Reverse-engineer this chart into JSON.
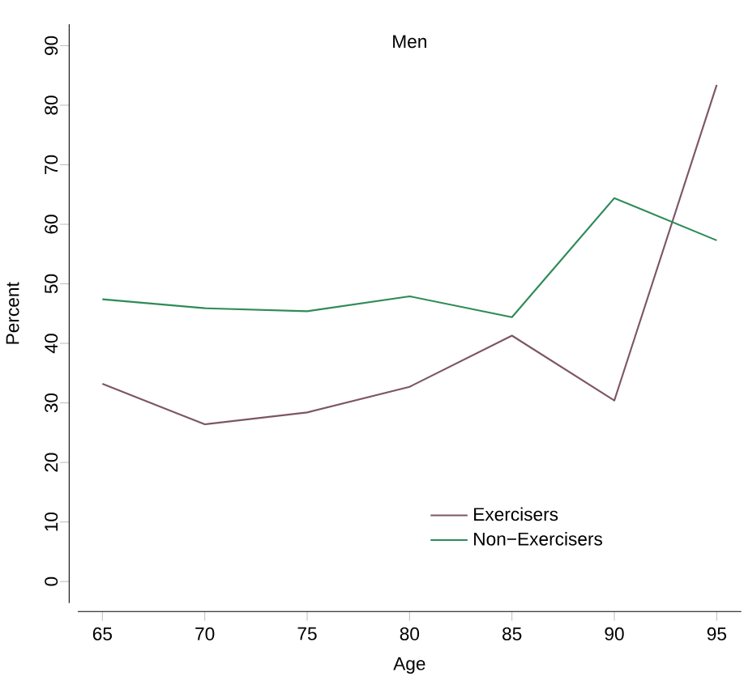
{
  "chart_data": {
    "type": "line",
    "title": "Men",
    "xlabel": "Age",
    "ylabel": "Percent",
    "x": [
      65,
      70,
      75,
      80,
      85,
      90,
      95
    ],
    "series": [
      {
        "name": "Exercisers",
        "color": "#7d5566",
        "values": [
          33.2,
          26.4,
          28.4,
          32.7,
          41.3,
          30.4,
          83.4
        ]
      },
      {
        "name": "Non−Exercisers",
        "color": "#2e8b57",
        "values": [
          47.4,
          45.9,
          45.4,
          47.9,
          44.4,
          64.4,
          57.3
        ]
      }
    ],
    "xlim": [
      63.8,
      96.2
    ],
    "ylim": [
      -3.6,
      93.6
    ],
    "xticks": [
      65,
      70,
      75,
      80,
      85,
      90,
      95
    ],
    "yticks": [
      0,
      10,
      20,
      30,
      40,
      50,
      60,
      70,
      80,
      90
    ],
    "grid": false,
    "legend": "bottom right",
    "marker": "none",
    "line_style": "solid"
  }
}
